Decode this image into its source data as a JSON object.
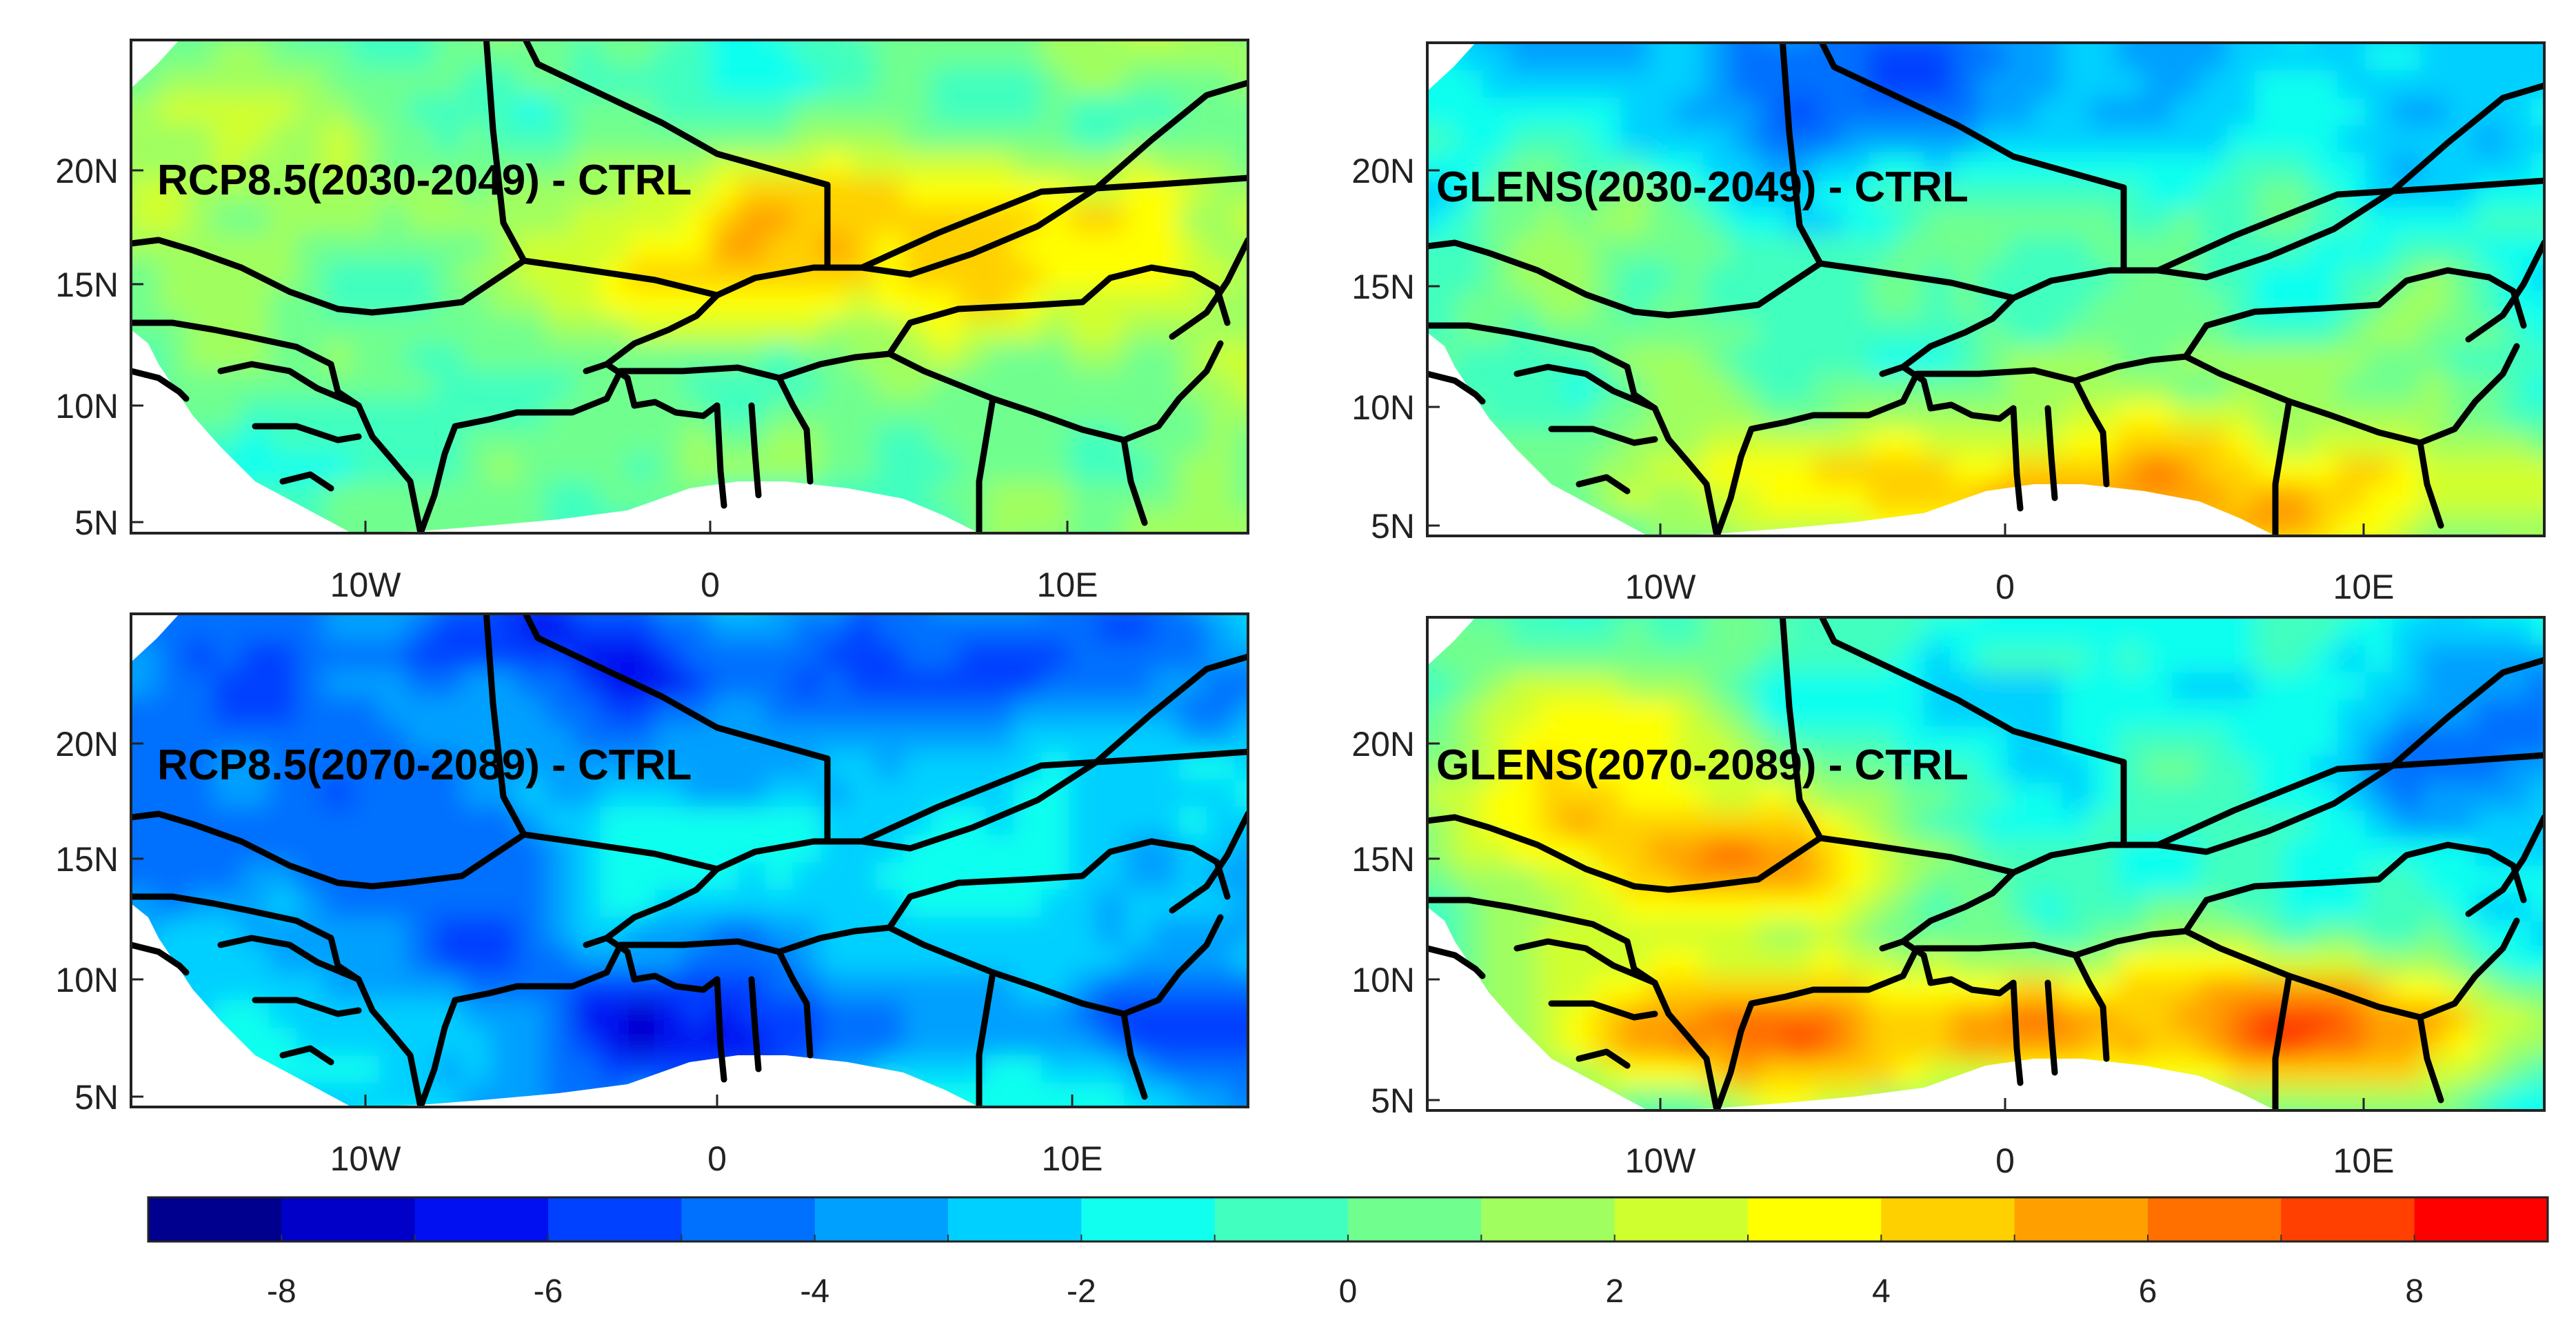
{
  "panels": [
    {
      "label": "RCP8.5(2030-2049) - CTRL",
      "pattern": "warm-north",
      "y_ticks": [
        "20N",
        "15N",
        "10N",
        "5N"
      ],
      "x_ticks": [
        "10W",
        "0",
        "10E"
      ]
    },
    {
      "label": "GLENS(2030-2049) - CTRL",
      "pattern": "warm-south",
      "y_ticks": [
        "20N",
        "15N",
        "10N",
        "5N"
      ],
      "x_ticks": [
        "10W",
        "0",
        "10E"
      ]
    },
    {
      "label": "RCP8.5(2070-2089) - CTRL",
      "pattern": "cold",
      "y_ticks": [
        "20N",
        "15N",
        "10N",
        "5N"
      ],
      "x_ticks": [
        "10W",
        "0",
        "10E"
      ]
    },
    {
      "label": "GLENS(2070-2089) - CTRL",
      "pattern": "hot-south",
      "y_ticks": [
        "20N",
        "15N",
        "10N",
        "5N"
      ],
      "x_ticks": [
        "10W",
        "0",
        "10E"
      ]
    }
  ],
  "colorbar": {
    "min": -9,
    "max": 9,
    "step": 1,
    "tick_labels": [
      "-8",
      "-6",
      "-4",
      "-2",
      "0",
      "2",
      "4",
      "6",
      "8"
    ],
    "colors": [
      "#00008f",
      "#0000c8",
      "#0010f0",
      "#0040ff",
      "#0070ff",
      "#00a0ff",
      "#00d0ff",
      "#10ffef",
      "#40ffbf",
      "#70ff8f",
      "#a0ff5f",
      "#d0ff2f",
      "#ffff00",
      "#ffd000",
      "#ffa000",
      "#ff7000",
      "#ff4000",
      "#ff0000"
    ]
  }
}
